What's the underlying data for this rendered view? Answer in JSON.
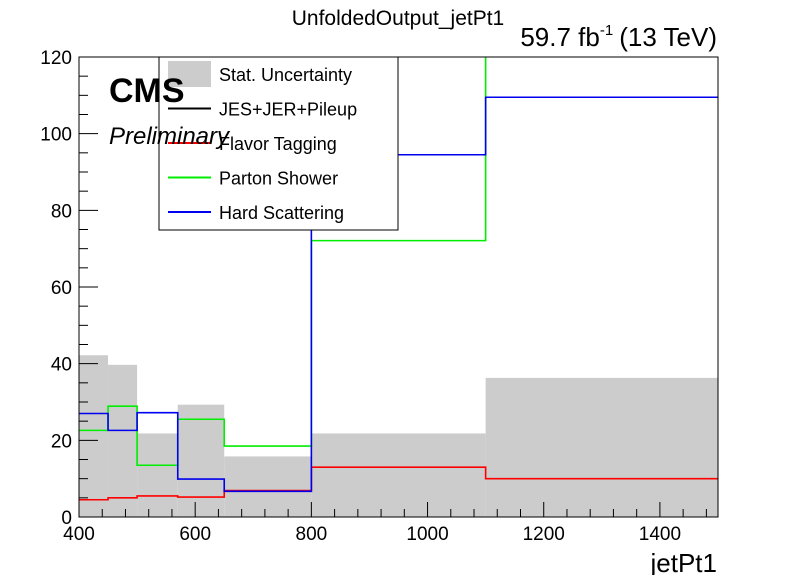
{
  "chart_data": {
    "type": "step",
    "title": "UnfoldedOutput_jetPt1",
    "luminosity": {
      "value": "59.7 fb",
      "exponent": "-1",
      "energy": "(13 TeV)"
    },
    "experiment": "CMS",
    "status": "Preliminary",
    "xlabel": "jetPt1",
    "ylabel": "",
    "xlim": [
      400,
      1500
    ],
    "ylim": [
      0,
      120
    ],
    "x_ticks": [
      400,
      600,
      800,
      1000,
      1200,
      1400
    ],
    "y_ticks": [
      0,
      20,
      40,
      60,
      80,
      100,
      120
    ],
    "bin_edges": [
      400,
      450,
      500,
      570,
      650,
      800,
      1100,
      1500
    ],
    "legend": {
      "placement": "top-left",
      "entries": [
        "Stat. Uncertainty",
        "JES+JER+Pileup",
        "Flavor Tagging",
        "Parton Shower",
        "Hard Scattering"
      ]
    },
    "series": [
      {
        "name": "Stat. Uncertainty",
        "style": "fill",
        "color": "#cccccc",
        "values": [
          42.2,
          39.7,
          21.8,
          29.3,
          15.8,
          21.8,
          36.3
        ]
      },
      {
        "name": "JES+JER+Pileup",
        "style": "line",
        "color": "#000000",
        "values": [
          0,
          0,
          0,
          0,
          0,
          0,
          0
        ]
      },
      {
        "name": "Flavor Tagging",
        "style": "line",
        "color": "#ff0000",
        "values": [
          4.5,
          5.0,
          5.5,
          5.2,
          6.9,
          13.0,
          10.0
        ]
      },
      {
        "name": "Parton Shower",
        "style": "line",
        "color": "#00ee00",
        "values": [
          22.6,
          28.9,
          13.5,
          25.5,
          18.5,
          72.1,
          130
        ]
      },
      {
        "name": "Hard Scattering",
        "style": "line",
        "color": "#0000ee",
        "values": [
          27.0,
          22.6,
          27.2,
          9.9,
          6.7,
          94.5,
          109.5
        ]
      }
    ]
  }
}
